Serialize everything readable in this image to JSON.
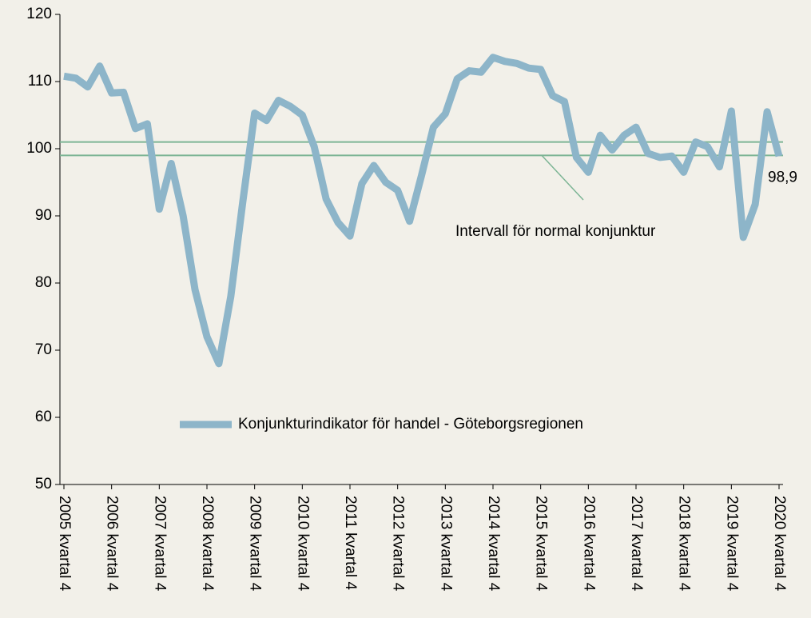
{
  "chart_data": {
    "type": "line",
    "categories": [
      "2005 kvartal 4",
      null,
      null,
      null,
      "2006 kvartal 4",
      null,
      null,
      null,
      "2007 kvartal 4",
      null,
      null,
      null,
      "2008 kvartal 4",
      null,
      null,
      null,
      "2009 kvartal 4",
      null,
      null,
      null,
      "2010 kvartal 4",
      null,
      null,
      null,
      "2011 kvartal 4",
      null,
      null,
      null,
      "2012 kvartal 4",
      null,
      null,
      null,
      "2013 kvartal 4",
      null,
      null,
      null,
      "2014 kvartal 4",
      null,
      null,
      null,
      "2015 kvartal 4",
      null,
      null,
      null,
      "2016 kvartal 4",
      null,
      null,
      null,
      "2017 kvartal 4",
      null,
      null,
      null,
      "2018 kvartal 4",
      null,
      null,
      null,
      "2019 kvartal 4",
      null,
      null,
      null,
      "2020 kvartal 4"
    ],
    "series": [
      {
        "name": "Konjunkturindikator för handel - Göteborgsregionen",
        "color": "#8db5c9",
        "values": [
          110.8,
          110.5,
          109.2,
          112.3,
          108.3,
          108.4,
          103,
          103.7,
          91,
          97.8,
          90,
          79,
          72,
          68,
          78,
          92,
          105.3,
          104.2,
          107.2,
          106.3,
          105,
          100.3,
          92.5,
          89,
          87,
          94.8,
          97.5,
          95,
          93.8,
          89.2,
          96,
          103.2,
          105.2,
          110.4,
          111.6,
          111.4,
          113.6,
          113,
          112.7,
          112,
          111.8,
          107.9,
          107,
          98.7,
          96.5,
          102,
          99.8,
          102,
          103.2,
          99.3,
          98.7,
          98.9,
          96.5,
          101,
          100.3,
          97.3,
          105.6,
          86.8,
          91.7,
          105.5,
          98.9
        ],
        "value_labels": [
          null,
          null,
          null,
          null,
          null,
          null,
          null,
          null,
          null,
          null,
          null,
          null,
          null,
          null,
          null,
          null,
          null,
          null,
          null,
          null,
          null,
          null,
          null,
          null,
          null,
          null,
          null,
          null,
          null,
          null,
          null,
          null,
          null,
          null,
          null,
          null,
          null,
          null,
          null,
          null,
          null,
          null,
          null,
          null,
          null,
          null,
          null,
          null,
          null,
          null,
          null,
          null,
          null,
          null,
          null,
          null,
          null,
          null,
          null,
          null,
          "98,9"
        ]
      }
    ],
    "reference_lines": {
      "values": [
        101,
        99
      ],
      "color": "#7db595",
      "annotation": "Intervall för normal konjunktur"
    },
    "ylim": [
      50,
      120
    ],
    "yticks": [
      50,
      60,
      70,
      80,
      90,
      100,
      110,
      120
    ],
    "grid": false,
    "legend": "bottom"
  }
}
